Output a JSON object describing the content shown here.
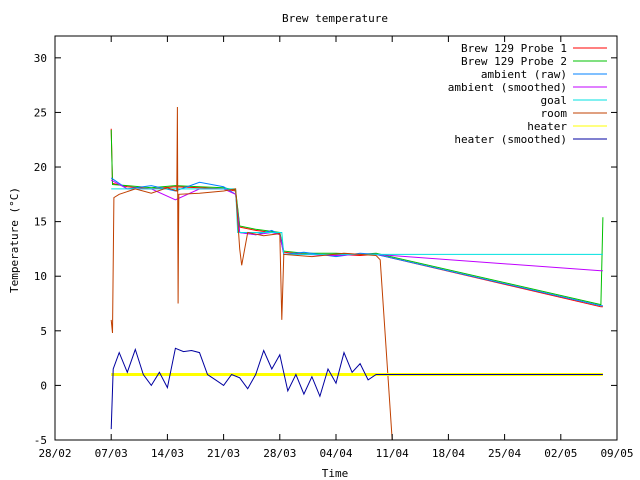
{
  "chart_data": {
    "type": "line",
    "title": "Brew temperature",
    "xlabel": "Time",
    "ylabel": "Temperature (°C)",
    "xlim": [
      "2010-02-28",
      "2010-05-09"
    ],
    "ylim": [
      -5,
      32
    ],
    "grid": false,
    "legend_position": "top-right",
    "x_ticks": [
      "28/02",
      "07/03",
      "14/03",
      "21/03",
      "28/03",
      "04/04",
      "11/04",
      "18/04",
      "25/04",
      "02/05",
      "09/05"
    ],
    "y_ticks": [
      "-5",
      "0",
      "5",
      "10",
      "15",
      "20",
      "25",
      "30"
    ],
    "series": [
      {
        "name": "Brew 129 Probe 1",
        "color": "#ff0000",
        "points": [
          [
            "2010-03-07T00:00",
            23.5
          ],
          [
            "2010-03-07T04:00",
            18.5
          ],
          [
            "2010-03-09",
            18.2
          ],
          [
            "2010-03-12",
            18.0
          ],
          [
            "2010-03-15",
            18.2
          ],
          [
            "2010-03-18",
            18.1
          ],
          [
            "2010-03-21",
            18.0
          ],
          [
            "2010-03-22T12:00",
            17.8
          ],
          [
            "2010-03-23",
            14.5
          ],
          [
            "2010-03-25",
            14.2
          ],
          [
            "2010-03-27",
            14.0
          ],
          [
            "2010-03-28",
            13.9
          ],
          [
            "2010-03-28T12:00",
            12.2
          ],
          [
            "2010-03-31",
            12.0
          ],
          [
            "2010-04-04",
            12.0
          ],
          [
            "2010-04-07",
            11.9
          ],
          [
            "2010-04-09",
            12.0
          ],
          [
            "2010-05-07",
            7.2
          ],
          [
            "2010-05-07T06:00",
            7.2
          ]
        ]
      },
      {
        "name": "Brew 129 Probe 2",
        "color": "#00c000",
        "points": [
          [
            "2010-03-07T00:00",
            23.4
          ],
          [
            "2010-03-07T04:00",
            18.4
          ],
          [
            "2010-03-09",
            18.3
          ],
          [
            "2010-03-12",
            18.1
          ],
          [
            "2010-03-15",
            18.3
          ],
          [
            "2010-03-18",
            18.2
          ],
          [
            "2010-03-21",
            18.1
          ],
          [
            "2010-03-22T12:00",
            17.9
          ],
          [
            "2010-03-23",
            14.6
          ],
          [
            "2010-03-25",
            14.3
          ],
          [
            "2010-03-27",
            14.1
          ],
          [
            "2010-03-28",
            14.0
          ],
          [
            "2010-03-28T12:00",
            12.3
          ],
          [
            "2010-03-31",
            12.1
          ],
          [
            "2010-04-04",
            12.1
          ],
          [
            "2010-04-07",
            12.0
          ],
          [
            "2010-04-09",
            12.1
          ],
          [
            "2010-05-07",
            7.4
          ],
          [
            "2010-05-07T06:00",
            15.4
          ]
        ]
      },
      {
        "name": "ambient (raw)",
        "color": "#0080ff",
        "points": [
          [
            "2010-03-07T00:00",
            19.0
          ],
          [
            "2010-03-09",
            18.0
          ],
          [
            "2010-03-12",
            18.3
          ],
          [
            "2010-03-15",
            17.8
          ],
          [
            "2010-03-18",
            18.6
          ],
          [
            "2010-03-21",
            18.2
          ],
          [
            "2010-03-22T12:00",
            17.5
          ],
          [
            "2010-03-23",
            14.0
          ],
          [
            "2010-03-25",
            13.8
          ],
          [
            "2010-03-27",
            14.2
          ],
          [
            "2010-03-28",
            13.8
          ],
          [
            "2010-03-28T12:00",
            12.0
          ],
          [
            "2010-03-31",
            12.2
          ],
          [
            "2010-04-04",
            11.8
          ],
          [
            "2010-04-07",
            12.1
          ],
          [
            "2010-04-09",
            12.0
          ],
          [
            "2010-05-07",
            7.3
          ],
          [
            "2010-05-07T06:00",
            7.3
          ]
        ]
      },
      {
        "name": "ambient (smoothed)",
        "color": "#c000ff",
        "points": [
          [
            "2010-03-07T00:00",
            18.8
          ],
          [
            "2010-03-09",
            18.0
          ],
          [
            "2010-03-12",
            18.0
          ],
          [
            "2010-03-15",
            17.0
          ],
          [
            "2010-03-18",
            18.0
          ],
          [
            "2010-03-21",
            18.0
          ],
          [
            "2010-03-22T12:00",
            17.5
          ],
          [
            "2010-03-23",
            14.0
          ],
          [
            "2010-03-25",
            13.8
          ],
          [
            "2010-03-27",
            14.0
          ],
          [
            "2010-03-28",
            13.8
          ],
          [
            "2010-03-28T12:00",
            12.0
          ],
          [
            "2010-03-31",
            12.0
          ],
          [
            "2010-04-04",
            11.9
          ],
          [
            "2010-04-07",
            12.0
          ],
          [
            "2010-04-09",
            12.0
          ],
          [
            "2010-05-07",
            10.5
          ],
          [
            "2010-05-07T06:00",
            10.5
          ]
        ]
      },
      {
        "name": "goal",
        "color": "#00e0e0",
        "points": [
          [
            "2010-03-07T00:00",
            18.0
          ],
          [
            "2010-03-22T12:00",
            18.0
          ],
          [
            "2010-03-22T18:00",
            14.0
          ],
          [
            "2010-03-28T06:00",
            14.0
          ],
          [
            "2010-03-28T12:00",
            12.0
          ],
          [
            "2010-05-07T06:00",
            12.0
          ]
        ]
      },
      {
        "name": "room",
        "color": "#c04000",
        "points": [
          [
            "2010-03-07T00:00",
            6.0
          ],
          [
            "2010-03-07T04:00",
            4.8
          ],
          [
            "2010-03-07T08:00",
            17.2
          ],
          [
            "2010-03-08",
            17.5
          ],
          [
            "2010-03-10",
            18.0
          ],
          [
            "2010-03-12",
            17.6
          ],
          [
            "2010-03-14",
            18.1
          ],
          [
            "2010-03-15T04:00",
            17.8
          ],
          [
            "2010-03-15T06:00",
            25.5
          ],
          [
            "2010-03-15T08:00",
            7.5
          ],
          [
            "2010-03-15T10:00",
            17.5
          ],
          [
            "2010-03-18",
            17.6
          ],
          [
            "2010-03-21",
            17.8
          ],
          [
            "2010-03-22T12:00",
            18.0
          ],
          [
            "2010-03-23",
            12.5
          ],
          [
            "2010-03-23T06:00",
            11.0
          ],
          [
            "2010-03-24",
            14.0
          ],
          [
            "2010-03-26",
            13.7
          ],
          [
            "2010-03-28",
            13.9
          ],
          [
            "2010-03-28T06:00",
            6.0
          ],
          [
            "2010-03-28T12:00",
            12.0
          ],
          [
            "2010-04-01",
            11.8
          ],
          [
            "2010-04-05",
            12.1
          ],
          [
            "2010-04-09",
            11.9
          ],
          [
            "2010-04-09T12:00",
            11.5
          ],
          [
            "2010-04-11",
            -5.0
          ]
        ]
      },
      {
        "name": "heater",
        "color": "#ffff00",
        "points": [
          [
            "2010-03-07T00:00",
            1.0
          ],
          [
            "2010-04-09",
            1.0
          ],
          [
            "2010-05-07T06:00",
            1.0
          ]
        ]
      },
      {
        "name": "heater (smoothed)",
        "color": "#0000a0",
        "points": [
          [
            "2010-03-07T00:00",
            -4.0
          ],
          [
            "2010-03-07T06:00",
            1.5
          ],
          [
            "2010-03-08",
            3.0
          ],
          [
            "2010-03-09",
            1.2
          ],
          [
            "2010-03-10",
            3.3
          ],
          [
            "2010-03-11",
            1.0
          ],
          [
            "2010-03-12",
            0.0
          ],
          [
            "2010-03-13",
            1.2
          ],
          [
            "2010-03-14",
            -0.2
          ],
          [
            "2010-03-15",
            3.4
          ],
          [
            "2010-03-16",
            3.1
          ],
          [
            "2010-03-17",
            3.2
          ],
          [
            "2010-03-18",
            3.0
          ],
          [
            "2010-03-19",
            1.0
          ],
          [
            "2010-03-20",
            0.5
          ],
          [
            "2010-03-21",
            0.0
          ],
          [
            "2010-03-22",
            1.0
          ],
          [
            "2010-03-23",
            0.7
          ],
          [
            "2010-03-24",
            -0.3
          ],
          [
            "2010-03-25",
            1.0
          ],
          [
            "2010-03-26",
            3.2
          ],
          [
            "2010-03-27",
            1.5
          ],
          [
            "2010-03-28",
            2.8
          ],
          [
            "2010-03-29",
            -0.5
          ],
          [
            "2010-03-30",
            1.0
          ],
          [
            "2010-03-31",
            -0.8
          ],
          [
            "2010-04-01",
            0.8
          ],
          [
            "2010-04-02",
            -1.0
          ],
          [
            "2010-04-03",
            1.5
          ],
          [
            "2010-04-04",
            0.2
          ],
          [
            "2010-04-05",
            3.0
          ],
          [
            "2010-04-06",
            1.2
          ],
          [
            "2010-04-07",
            2.0
          ],
          [
            "2010-04-08",
            0.5
          ],
          [
            "2010-04-09",
            1.0
          ],
          [
            "2010-05-07T06:00",
            1.0
          ]
        ]
      }
    ]
  }
}
